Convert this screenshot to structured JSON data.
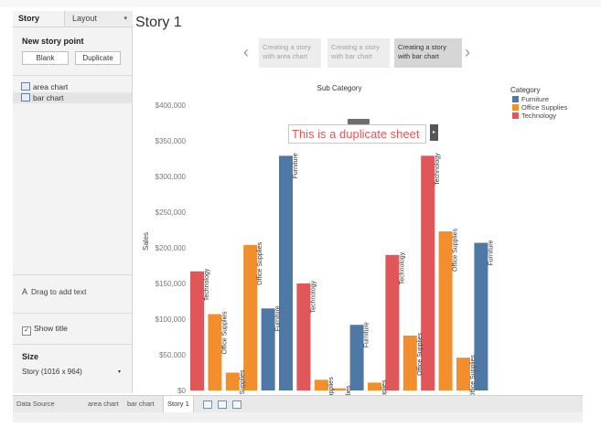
{
  "left_panel": {
    "tab_story": "Story",
    "tab_layout": "Layout",
    "tab_layout_caret": "▾",
    "new_story_point": "New story point",
    "blank_button": "Blank",
    "duplicate_button": "Duplicate",
    "sheets": [
      "area chart",
      "bar chart"
    ],
    "drag_icon": "A",
    "drag_text": "Drag to add text",
    "show_title_check": "✓",
    "show_title": "Show title",
    "size_label": "Size",
    "size_value": "Story (1016 x 964)",
    "size_caret": "▾"
  },
  "story": {
    "title": "Story 1",
    "nav_prev": "‹",
    "nav_next": "›",
    "story_points": [
      "Creating a story with area chart",
      "Creating a story with bar chart",
      "Creating a story with bar chart"
    ],
    "active_point_index": 2
  },
  "annotation": {
    "text": "This is a duplicate sheet",
    "handle": "▸"
  },
  "legend": {
    "title": "Category",
    "items": [
      {
        "label": "Furniture",
        "color": "#4e79a7"
      },
      {
        "label": "Office Supplies",
        "color": "#f28e2b"
      },
      {
        "label": "Technology",
        "color": "#e15759"
      }
    ]
  },
  "chart_data": {
    "type": "bar",
    "title": "Sub Category",
    "xlabel": "",
    "ylabel": "Sales",
    "ylim": [
      0,
      400000
    ],
    "yticks": [
      "$0",
      "$50,000",
      "$100,000",
      "$150,000",
      "$200,000",
      "$250,000",
      "$300,000",
      "$350,000",
      "$400,000"
    ],
    "grid": false,
    "legend_position": "top-right",
    "bars": [
      {
        "label": "Technology",
        "category": "Technology",
        "value": 167000
      },
      {
        "label": "Office Supplies",
        "category": "Office Supplies",
        "value": 107000
      },
      {
        "label": "Office Supplies",
        "category": "Office Supplies",
        "value": 25000
      },
      {
        "label": "Office Supplies",
        "category": "Office Supplies",
        "value": 204000
      },
      {
        "label": "Furniture",
        "category": "Furniture",
        "value": 115000
      },
      {
        "label": "Furniture",
        "category": "Furniture",
        "value": 329000
      },
      {
        "label": "Technology",
        "category": "Technology",
        "value": 150000
      },
      {
        "label": "Office Supplies",
        "category": "Office Supplies",
        "value": 15000
      },
      {
        "label": "Office Supplies",
        "category": "Office Supplies",
        "value": 3000
      },
      {
        "label": "Furniture",
        "category": "Furniture",
        "value": 92000
      },
      {
        "label": "Office Supplies",
        "category": "Office Supplies",
        "value": 11000
      },
      {
        "label": "Technology",
        "category": "Technology",
        "value": 190000
      },
      {
        "label": "Office Supplies",
        "category": "Office Supplies",
        "value": 77000
      },
      {
        "label": "Technology",
        "category": "Technology",
        "value": 329000
      },
      {
        "label": "Office Supplies",
        "category": "Office Supplies",
        "value": 223000
      },
      {
        "label": "Office Supplies",
        "category": "Office Supplies",
        "value": 46000
      },
      {
        "label": "Furniture",
        "category": "Furniture",
        "value": 207000
      }
    ]
  },
  "bottom_tabs": {
    "data_source": "Data Source",
    "area_chart": "area chart",
    "bar_chart": "bar chart",
    "story": "Story 1"
  }
}
